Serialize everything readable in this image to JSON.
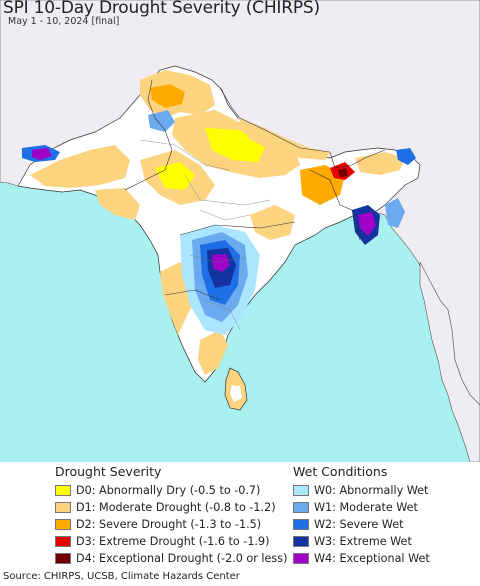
{
  "title": "SPI 10-Day Drought Severity (CHIRPS)",
  "subtitle": "May 1 - 10, 2024 [final]",
  "source": "Source: CHIRPS, UCSB, Climate Hazards Center",
  "colors": {
    "sea": "#a9f0f1",
    "land": "#efedf2",
    "no_drought": "#ffffff",
    "border": "#333333"
  },
  "legend": {
    "drought_heading": "Drought Severity",
    "wet_heading": "Wet Conditions",
    "drought": [
      {
        "code": "D0",
        "label": "D0: Abnormally Dry (-0.5 to -0.7)",
        "color": "#ffff00"
      },
      {
        "code": "D1",
        "label": "D1: Moderate Drought (-0.8 to -1.2)",
        "color": "#fcd37f"
      },
      {
        "code": "D2",
        "label": "D2: Severe Drought (-1.3 to -1.5)",
        "color": "#ffaa00"
      },
      {
        "code": "D3",
        "label": "D3: Extreme Drought (-1.6 to -1.9)",
        "color": "#e60000"
      },
      {
        "code": "D4",
        "label": "D4: Exceptional Drought (-2.0 or less)",
        "color": "#730000"
      }
    ],
    "wet": [
      {
        "code": "W0",
        "label": "W0: Abnormally Wet",
        "color": "#aae6ff"
      },
      {
        "code": "W1",
        "label": "W1: Moderate Wet",
        "color": "#6baaee"
      },
      {
        "code": "W2",
        "label": "W2: Severe Wet",
        "color": "#1e6ee6"
      },
      {
        "code": "W3",
        "label": "W3: Extreme Wet",
        "color": "#1432a0"
      },
      {
        "code": "W4",
        "label": "W4: Exceptional Wet",
        "color": "#a000c8"
      }
    ]
  }
}
